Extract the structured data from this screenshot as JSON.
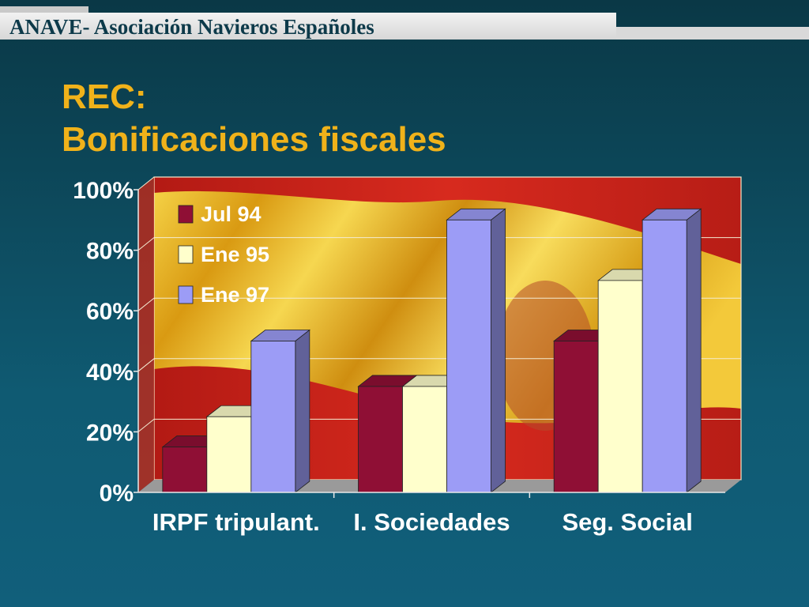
{
  "header": {
    "organization": "ANAVE- Asociación Navieros Españoles"
  },
  "slide": {
    "title_line1": "REC:",
    "title_line2": "Bonificaciones fiscales"
  },
  "colors": {
    "title": "#f0b21a",
    "series": [
      "#8f0f35",
      "#ffffcc",
      "#9c9cf6"
    ],
    "flag_red": "#c9211b",
    "flag_yellow": "#f4c21d"
  },
  "chart_data": {
    "type": "bar",
    "categories": [
      "IRPF tripulant.",
      "I. Sociedades",
      "Seg. Social"
    ],
    "series": [
      {
        "name": "Jul 94",
        "values": [
          15,
          35,
          50
        ]
      },
      {
        "name": "Ene 95",
        "values": [
          25,
          35,
          70
        ]
      },
      {
        "name": "Ene 97",
        "values": [
          50,
          90,
          90
        ]
      }
    ],
    "ylim": [
      0,
      100
    ],
    "yticks": [
      "0%",
      "20%",
      "40%",
      "60%",
      "80%",
      "100%"
    ],
    "legend_position": "top-left",
    "grid": true
  }
}
